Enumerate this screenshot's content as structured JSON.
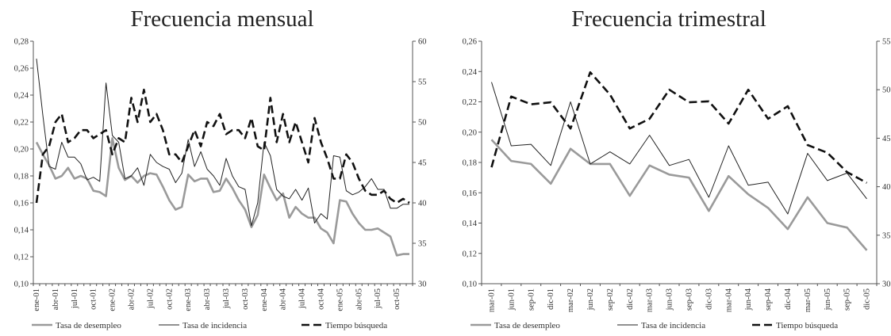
{
  "chart_data": [
    {
      "type": "line",
      "title": "Frecuencia mensual",
      "y_left_lim": [
        0.1,
        0.28
      ],
      "y_left_ticks": [
        "0,10",
        "0,12",
        "0,14",
        "0,16",
        "0,18",
        "0,20",
        "0,22",
        "0,24",
        "0,26",
        "0,28"
      ],
      "y_right_lim": [
        30,
        60
      ],
      "y_right_ticks": [
        "30",
        "35",
        "40",
        "45",
        "50",
        "55",
        "60"
      ],
      "x_tick_labels": [
        "ene-01",
        "abr-01",
        "jul-01",
        "oct-01",
        "ene-02",
        "abr-02",
        "jul-02",
        "oct-02",
        "ene-03",
        "abr-03",
        "jul-03",
        "oct-03",
        "ene-04",
        "abr-04",
        "jul-04",
        "oct-04",
        "ene-05",
        "abr-05",
        "jul-05",
        "oct-05"
      ],
      "n_points": 60,
      "legend": [
        "Tasa de desempleo",
        "Tasa de incidencia",
        "Tiempo búsqueda"
      ],
      "series": [
        {
          "name": "Tasa de desempleo",
          "axis": "left",
          "color": "#9a9a9a",
          "dash": "none",
          "width": 2.6,
          "values": [
            0.205,
            0.196,
            0.188,
            0.178,
            0.18,
            0.186,
            0.178,
            0.18,
            0.178,
            0.169,
            0.168,
            0.165,
            0.208,
            0.186,
            0.177,
            0.18,
            0.175,
            0.18,
            0.182,
            0.181,
            0.172,
            0.162,
            0.155,
            0.157,
            0.181,
            0.176,
            0.178,
            0.178,
            0.168,
            0.169,
            0.178,
            0.171,
            0.162,
            0.155,
            0.142,
            0.151,
            0.181,
            0.171,
            0.162,
            0.167,
            0.149,
            0.157,
            0.152,
            0.149,
            0.149,
            0.141,
            0.138,
            0.13,
            0.162,
            0.161,
            0.152,
            0.145,
            0.14,
            0.14,
            0.141,
            0.138,
            0.135,
            0.121,
            0.122,
            0.122
          ]
        },
        {
          "name": "Tasa de incidencia",
          "axis": "left",
          "color": "#222222",
          "dash": "none",
          "width": 1,
          "values": [
            0.267,
            0.225,
            0.187,
            0.185,
            0.205,
            0.194,
            0.194,
            0.189,
            0.177,
            0.179,
            0.176,
            0.249,
            0.21,
            0.205,
            0.178,
            0.18,
            0.186,
            0.173,
            0.196,
            0.19,
            0.187,
            0.185,
            0.175,
            0.182,
            0.207,
            0.187,
            0.198,
            0.185,
            0.18,
            0.173,
            0.193,
            0.18,
            0.172,
            0.17,
            0.143,
            0.16,
            0.205,
            0.195,
            0.17,
            0.165,
            0.163,
            0.17,
            0.162,
            0.171,
            0.145,
            0.152,
            0.148,
            0.195,
            0.194,
            0.169,
            0.166,
            0.168,
            0.172,
            0.178,
            0.17,
            0.17,
            0.156,
            0.156,
            0.159,
            0.159
          ]
        },
        {
          "name": "Tiempo búsqueda",
          "axis": "right",
          "color": "#111111",
          "dash": "10,5",
          "width": 2.6,
          "values": [
            40,
            46,
            47,
            50,
            51,
            47.5,
            48,
            49,
            49,
            48,
            48.5,
            49,
            46,
            48,
            47.5,
            53,
            50,
            54,
            50,
            51,
            49,
            46,
            46,
            45,
            47,
            49,
            47,
            50,
            49.5,
            51,
            48.5,
            49,
            49,
            48,
            50.5,
            47,
            46.5,
            53,
            47.5,
            51,
            47.5,
            50,
            47.5,
            45,
            50.5,
            47.5,
            45.5,
            43,
            43,
            46,
            45,
            43,
            41.5,
            41,
            41,
            41.5,
            40.5,
            40,
            40.5,
            40
          ]
        }
      ]
    },
    {
      "type": "line",
      "title": "Frecuencia trimestral",
      "y_left_lim": [
        0.1,
        0.26
      ],
      "y_left_ticks": [
        "0,10",
        "0,12",
        "0,14",
        "0,16",
        "0,18",
        "0,20",
        "0,22",
        "0,24",
        "0,26"
      ],
      "y_right_lim": [
        30,
        55
      ],
      "y_right_ticks": [
        "30",
        "35",
        "40",
        "45",
        "50",
        "55"
      ],
      "x_tick_labels": [
        "mar-01",
        "jun-01",
        "sep-01",
        "dic-01",
        "mar-02",
        "jun-02",
        "sep-02",
        "dic-02",
        "mar-03",
        "jun-03",
        "sep-03",
        "dic-03",
        "mar-04",
        "jun-04",
        "sep-04",
        "dic-04",
        "mar-05",
        "jun-05",
        "sep-05",
        "dic-05"
      ],
      "n_points": 20,
      "legend": [
        "Tasa de desempleo",
        "Tasa de incidencia",
        "Tiempo búsqueda"
      ],
      "series": [
        {
          "name": "Tasa de desempleo",
          "axis": "left",
          "color": "#9a9a9a",
          "dash": "none",
          "width": 2.6,
          "values": [
            0.195,
            0.181,
            0.179,
            0.166,
            0.189,
            0.179,
            0.179,
            0.158,
            0.178,
            0.172,
            0.17,
            0.148,
            0.171,
            0.159,
            0.15,
            0.136,
            0.157,
            0.14,
            0.137,
            0.122
          ]
        },
        {
          "name": "Tasa de incidencia",
          "axis": "left",
          "color": "#222222",
          "dash": "none",
          "width": 1,
          "values": [
            0.233,
            0.191,
            0.192,
            0.178,
            0.22,
            0.179,
            0.187,
            0.179,
            0.198,
            0.178,
            0.182,
            0.157,
            0.191,
            0.165,
            0.167,
            0.146,
            0.186,
            0.168,
            0.173,
            0.156
          ]
        },
        {
          "name": "Tiempo búsqueda",
          "axis": "right",
          "color": "#111111",
          "dash": "10,5",
          "width": 2.6,
          "values": [
            42,
            49.3,
            48.5,
            48.7,
            46,
            51.8,
            49.5,
            46,
            47,
            50,
            48.7,
            48.8,
            46.5,
            50,
            47,
            48.3,
            44.3,
            43.5,
            41.5,
            40.4
          ]
        }
      ]
    }
  ]
}
